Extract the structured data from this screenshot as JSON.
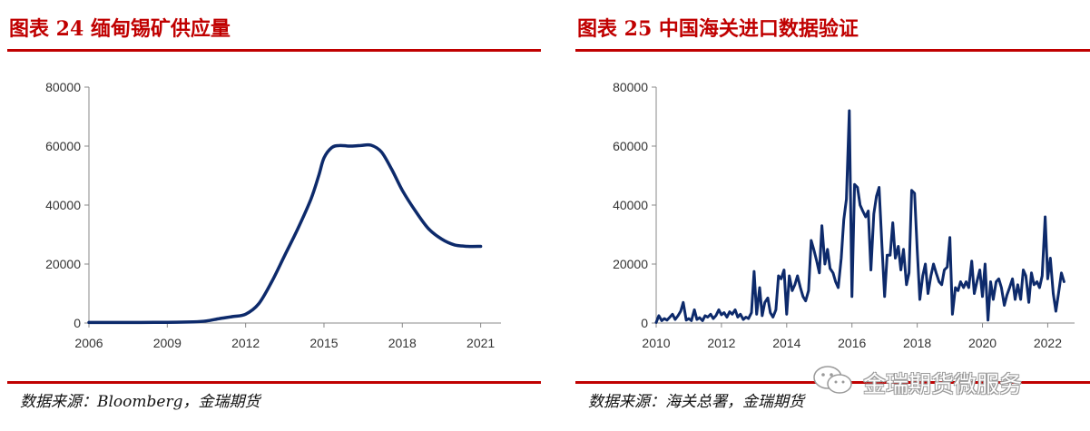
{
  "charts": [
    {
      "title": "图表 24 缅甸锡矿供应量",
      "source": "数据来源：Bloomberg，金瑞期货",
      "chart_data": {
        "type": "line",
        "color": "#0d2a6b",
        "ylim": [
          0,
          80000
        ],
        "yticks": [
          0,
          20000,
          40000,
          60000,
          80000
        ],
        "xlim": [
          2006,
          2021.5
        ],
        "xticks": [
          2006,
          2009,
          2012,
          2015,
          2018,
          2021
        ],
        "series": [
          {
            "x": [
              2006.0,
              2007.0,
              2008.0,
              2009.0,
              2010.0,
              2010.5,
              2011.0,
              2011.5,
              2012.0,
              2012.5,
              2013.0,
              2013.5,
              2014.0,
              2014.5,
              2014.8,
              2015.0,
              2015.3,
              2015.6,
              2016.0,
              2016.4,
              2016.8,
              2017.2,
              2017.6,
              2018.0,
              2018.5,
              2019.0,
              2019.5,
              2020.0,
              2020.5,
              2021.0
            ],
            "y": [
              200,
              200,
              200,
              250,
              400,
              700,
              1500,
              2200,
              3000,
              6500,
              14000,
              23000,
              32000,
              42000,
              50000,
              56000,
              59500,
              60200,
              60000,
              60200,
              60300,
              58000,
              52000,
              45000,
              38000,
              32000,
              28500,
              26500,
              26000,
              26000
            ]
          }
        ]
      }
    },
    {
      "title": "图表 25 中国海关进口数据验证",
      "source": "数据来源：海关总署，金瑞期货",
      "chart_data": {
        "type": "line",
        "color": "#0d2a6b",
        "ylim": [
          0,
          80000
        ],
        "yticks": [
          0,
          20000,
          40000,
          60000,
          80000
        ],
        "xlim": [
          2010,
          2022.6
        ],
        "xticks": [
          2010,
          2012,
          2014,
          2016,
          2018,
          2020,
          2022
        ],
        "series": [
          {
            "x": [
              2010.0,
              2010.08,
              2010.17,
              2010.25,
              2010.33,
              2010.42,
              2010.5,
              2010.58,
              2010.67,
              2010.75,
              2010.83,
              2010.92,
              2011.0,
              2011.08,
              2011.17,
              2011.25,
              2011.33,
              2011.42,
              2011.5,
              2011.58,
              2011.67,
              2011.75,
              2011.83,
              2011.92,
              2012.0,
              2012.08,
              2012.17,
              2012.25,
              2012.33,
              2012.42,
              2012.5,
              2012.58,
              2012.67,
              2012.75,
              2012.83,
              2012.92,
              2013.0,
              2013.08,
              2013.17,
              2013.25,
              2013.33,
              2013.42,
              2013.5,
              2013.58,
              2013.67,
              2013.75,
              2013.83,
              2013.92,
              2014.0,
              2014.08,
              2014.17,
              2014.25,
              2014.33,
              2014.42,
              2014.5,
              2014.58,
              2014.67,
              2014.75,
              2014.83,
              2014.92,
              2015.0,
              2015.08,
              2015.17,
              2015.25,
              2015.33,
              2015.42,
              2015.5,
              2015.58,
              2015.67,
              2015.75,
              2015.83,
              2015.92,
              2016.0,
              2016.08,
              2016.17,
              2016.25,
              2016.33,
              2016.42,
              2016.5,
              2016.58,
              2016.67,
              2016.75,
              2016.83,
              2016.92,
              2017.0,
              2017.08,
              2017.17,
              2017.25,
              2017.33,
              2017.42,
              2017.5,
              2017.58,
              2017.67,
              2017.75,
              2017.83,
              2017.92,
              2018.0,
              2018.08,
              2018.17,
              2018.25,
              2018.33,
              2018.42,
              2018.5,
              2018.58,
              2018.67,
              2018.75,
              2018.83,
              2018.92,
              2019.0,
              2019.08,
              2019.17,
              2019.25,
              2019.33,
              2019.42,
              2019.5,
              2019.58,
              2019.67,
              2019.75,
              2019.83,
              2019.92,
              2020.0,
              2020.08,
              2020.17,
              2020.25,
              2020.33,
              2020.42,
              2020.5,
              2020.58,
              2020.67,
              2020.75,
              2020.83,
              2020.92,
              2021.0,
              2021.08,
              2021.17,
              2021.25,
              2021.33,
              2021.42,
              2021.5,
              2021.58,
              2021.67,
              2021.75,
              2021.83,
              2021.92,
              2022.0,
              2022.08,
              2022.17,
              2022.25,
              2022.33,
              2022.42,
              2022.5
            ],
            "y": [
              200,
              2500,
              800,
              1500,
              1000,
              2000,
              3000,
              1200,
              2500,
              4000,
              7000,
              1000,
              1500,
              800,
              4500,
              1200,
              1800,
              800,
              2500,
              2000,
              3000,
              1500,
              2500,
              4500,
              2800,
              3500,
              2000,
              3800,
              3000,
              4500,
              2000,
              3000,
              1200,
              2000,
              1500,
              3500,
              17500,
              3000,
              12000,
              2500,
              7000,
              8500,
              3500,
              2000,
              4500,
              16000,
              15000,
              18000,
              3000,
              16000,
              11000,
              13000,
              16000,
              12000,
              9000,
              7500,
              11000,
              28000,
              25000,
              21000,
              17000,
              33000,
              20000,
              25000,
              18500,
              17000,
              14000,
              12000,
              22000,
              35000,
              42000,
              72000,
              9000,
              47000,
              46000,
              40000,
              38000,
              36000,
              38000,
              18000,
              37000,
              43000,
              46000,
              26000,
              9000,
              23000,
              23000,
              34000,
              22000,
              26000,
              18000,
              25000,
              13000,
              17000,
              45000,
              44000,
              25000,
              8000,
              16000,
              20000,
              10000,
              16000,
              20000,
              17000,
              14000,
              13000,
              18000,
              19000,
              29000,
              3000,
              12000,
              11000,
              14000,
              12000,
              14000,
              12000,
              21000,
              10000,
              14000,
              18000,
              9000,
              20000,
              1000,
              14000,
              8000,
              14000,
              15000,
              12000,
              6000,
              9500,
              12000,
              15000,
              8000,
              13000,
              8000,
              18000,
              16000,
              7000,
              17000,
              13000,
              14000,
              12000,
              16000,
              36000,
              15000,
              22000,
              10000,
              4000,
              10000,
              17000,
              14000
            ]
          }
        ]
      }
    }
  ],
  "watermark": {
    "text": "金瑞期货微服务",
    "icon": "wechat-logo-icon"
  }
}
